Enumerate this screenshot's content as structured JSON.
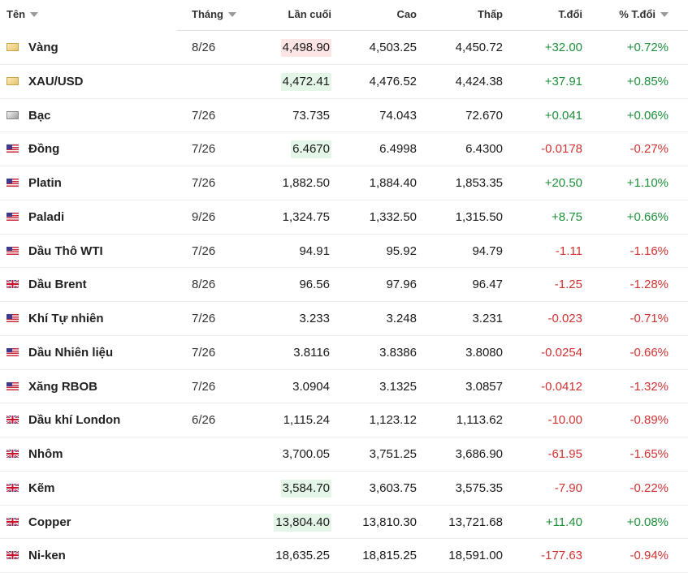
{
  "table": {
    "headers": [
      "Tên",
      "Tháng",
      "Lần cuối",
      "Cao",
      "Thấp",
      "T.đổi",
      "% T.đổi"
    ],
    "rows": [
      {
        "name": "Vàng",
        "month": "8/26",
        "last": "4,498.90",
        "high": "4,503.25",
        "low": "4,450.72",
        "change": "+32.00",
        "pct": "+0.72%"
      },
      {
        "name": "XAU/USD",
        "last": "4,472.41",
        "high": "4,476.52",
        "low": "4,424.38",
        "change": "+37.91",
        "pct": "+0.85%"
      },
      {
        "name": "Bạc",
        "month": "7/26",
        "last": "73.735",
        "high": "74.043",
        "low": "72.670",
        "change": "+0.041",
        "pct": "+0.06%"
      },
      {
        "name": "Đồng",
        "month": "7/26",
        "last": "6.4670",
        "high": "6.4998",
        "low": "6.4300",
        "change": "-0.0178",
        "pct": "-0.27%"
      },
      {
        "name": "Platin",
        "month": "7/26",
        "last": "1,882.50",
        "high": "1,884.40",
        "low": "1,853.35",
        "change": "+20.50",
        "pct": "+1.10%"
      },
      {
        "name": "Paladi",
        "month": "9/26",
        "last": "1,324.75",
        "high": "1,332.50",
        "low": "1,315.50",
        "change": "+8.75",
        "pct": "+0.66%"
      },
      {
        "name": "Dầu Thô WTI",
        "month": "7/26",
        "last": "94.91",
        "high": "95.92",
        "low": "94.79",
        "change": "-1.11",
        "pct": "-1.16%"
      },
      {
        "name": "Dầu Brent",
        "month": "8/26",
        "last": "96.56",
        "high": "97.96",
        "low": "96.47",
        "change": "-1.25",
        "pct": "-1.28%"
      },
      {
        "name": "Khí Tự nhiên",
        "month": "7/26",
        "last": "3.233",
        "high": "3.248",
        "low": "3.231",
        "change": "-0.023",
        "pct": "-0.71%"
      },
      {
        "name": "Dầu Nhiên liệu",
        "month": "7/26",
        "last": "3.8116",
        "high": "3.8386",
        "low": "3.8080",
        "change": "-0.0254",
        "pct": "-0.66%"
      },
      {
        "name": "Xăng RBOB",
        "month": "7/26",
        "last": "3.0904",
        "high": "3.1325",
        "low": "3.0857",
        "change": "-0.0412",
        "pct": "-1.32%"
      },
      {
        "name": "Dầu khí London",
        "month": "6/26",
        "last": "1,115.24",
        "high": "1,123.12",
        "low": "1,113.62",
        "change": "-10.00",
        "pct": "-0.89%"
      },
      {
        "name": "Nhôm",
        "last": "3,700.05",
        "high": "3,751.25",
        "low": "3,686.90",
        "change": "-61.95",
        "pct": "-1.65%"
      },
      {
        "name": "Kẽm",
        "last": "3,584.70",
        "high": "3,603.75",
        "low": "3,575.35",
        "change": "-7.90",
        "pct": "-0.22%"
      },
      {
        "name": "Copper",
        "last": "13,804.40",
        "high": "13,810.30",
        "low": "13,721.68",
        "change": "+11.40",
        "pct": "+0.08%"
      },
      {
        "name": "Ni-ken",
        "last": "18,635.25",
        "high": "18,815.25",
        "low": "18,591.00",
        "change": "-177.63",
        "pct": "-0.94%"
      }
    ]
  }
}
